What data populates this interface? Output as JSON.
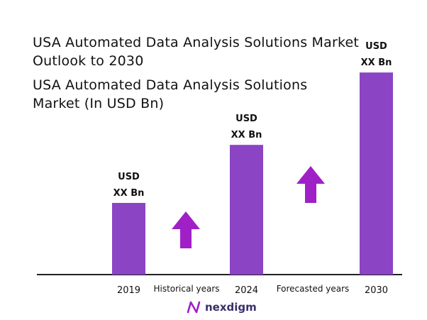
{
  "title": "USA Automated Data Analysis Solutions Market Outlook to 2030",
  "subtitle": "USA Automated Data Analysis Solutions Market (In USD Bn)",
  "chart_data": {
    "type": "bar",
    "categories": [
      "2019",
      "2024",
      "2030"
    ],
    "values": [
      1.0,
      1.81,
      2.82
    ],
    "value_labels": [
      [
        "USD",
        "XX Bn"
      ],
      [
        "USD",
        "XX Bn"
      ],
      [
        "USD",
        "XX Bn"
      ]
    ],
    "period_labels": [
      "Historical years",
      "Forecasted years"
    ],
    "bar_color": "#8a44c4",
    "arrow_color": "#a020c8",
    "grid": false,
    "legend": "none"
  },
  "brand": {
    "name": "nexdigm",
    "color": "#3a2f6b"
  }
}
